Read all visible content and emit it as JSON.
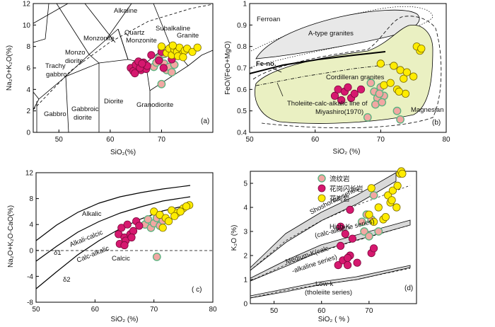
{
  "chart_data": [
    {
      "id": "a",
      "type": "scatter",
      "title": "",
      "panel_label": "(a)",
      "xlabel": "SiO₂(%)",
      "ylabel": "Na₂O+K₂O(%)",
      "xlim": [
        45,
        80
      ],
      "ylim": [
        0,
        12
      ],
      "xticks": [
        50,
        60,
        70
      ],
      "yticks": [
        0,
        2,
        4,
        6,
        8,
        10,
        12
      ],
      "field_labels": [
        "Alkaline",
        "Subalkaline",
        "Granite",
        "Quartz",
        "Monzonite",
        "Monzonite",
        "Monzo",
        "diorite",
        "Trachy",
        "gabbro",
        "Gabbro",
        "Gabbroic",
        "diorite",
        "Diorite",
        "Granodiorite"
      ],
      "series": [
        {
          "name": "流纹岩",
          "color": "#f2a7a3",
          "x": [
            68.5,
            69.0,
            69.5,
            70.5,
            71.0,
            71.5,
            72.0,
            70.0,
            72.5,
            70.5
          ],
          "y": [
            6.1,
            6.5,
            6.9,
            6.4,
            5.8,
            6.1,
            5.6,
            4.5,
            6.3,
            7.3
          ]
        },
        {
          "name": "花岗闪长岩",
          "color": "#d6186f",
          "x": [
            64.0,
            64.5,
            65.0,
            65.5,
            66.0,
            66.5,
            67.0,
            64.8,
            65.8,
            67.2,
            70.0,
            69.5,
            68.0,
            72.0,
            66.2,
            70.4
          ],
          "y": [
            6.0,
            5.7,
            6.3,
            6.6,
            5.8,
            6.5,
            5.9,
            5.5,
            6.0,
            6.2,
            7.5,
            6.7,
            7.2,
            6.8,
            6.4,
            6.0
          ]
        },
        {
          "name": "花岗岩",
          "color": "#ffec00",
          "x": [
            70.0,
            71.0,
            71.5,
            72.0,
            72.5,
            73.0,
            73.5,
            74.0,
            74.5,
            75.0,
            76.0,
            77.0,
            73.2,
            74.2,
            72.2
          ],
          "y": [
            8.0,
            7.4,
            7.8,
            7.2,
            7.7,
            7.5,
            7.9,
            7.3,
            7.6,
            7.8,
            7.5,
            7.9,
            7.1,
            7.0,
            8.1
          ]
        }
      ]
    },
    {
      "id": "b",
      "type": "scatter",
      "title": "",
      "panel_label": "(b)",
      "xlabel": "SiO₂ (%)",
      "ylabel": "FeO/(FeO+MgO)",
      "xlim": [
        50,
        80
      ],
      "ylim": [
        0.4,
        1.0
      ],
      "xticks": [
        50,
        60,
        70,
        80
      ],
      "yticks": [
        0.4,
        0.5,
        0.6,
        0.7,
        0.8,
        0.9,
        1.0
      ],
      "field_labels": [
        "Ferroan",
        "A-type granites",
        "Fe-no.",
        "Cordilleran granites",
        "Tholeiite-calc-alkalic line of",
        "Miyashiro(1970)",
        "Magnesian"
      ],
      "series": [
        {
          "name": "流纹岩",
          "color": "#f2a7a3",
          "x": [
            68.5,
            69.0,
            69.5,
            70.0,
            70.5,
            69.2,
            68.0,
            72.5,
            73.0,
            70.2,
            69.8
          ],
          "y": [
            0.63,
            0.59,
            0.56,
            0.61,
            0.57,
            0.53,
            0.47,
            0.5,
            0.46,
            0.54,
            0.58
          ]
        },
        {
          "name": "花岗闪长岩",
          "color": "#d6186f",
          "x": [
            63.0,
            63.5,
            64.0,
            64.5,
            65.0,
            65.5,
            66.0,
            67.0
          ],
          "y": [
            0.57,
            0.6,
            0.55,
            0.59,
            0.61,
            0.56,
            0.58,
            0.6
          ]
        },
        {
          "name": "花岗岩",
          "color": "#ffec00",
          "x": [
            70.0,
            72.0,
            73.0,
            73.5,
            74.0,
            75.0,
            76.0,
            72.5,
            73.8,
            75.5,
            70.5,
            72.8,
            76.2,
            71.5
          ],
          "y": [
            0.72,
            0.71,
            0.69,
            0.65,
            0.68,
            0.66,
            0.78,
            0.6,
            0.58,
            0.8,
            0.62,
            0.59,
            0.79,
            0.63
          ]
        }
      ]
    },
    {
      "id": "c",
      "type": "scatter",
      "title": "",
      "panel_label": "( c)",
      "xlabel": "SiO₂ (%)",
      "ylabel": "Na₂O+K₂O-CaO(%)",
      "xlim": [
        50,
        80
      ],
      "ylim": [
        -8,
        12
      ],
      "xticks": [
        50,
        60,
        70,
        80
      ],
      "yticks": [
        -8,
        -4,
        0,
        4,
        8,
        12
      ],
      "field_labels": [
        "Alkalic",
        "Alkali-calcic",
        "Calc-alkalic",
        "Calcic",
        "δ1",
        "δ2"
      ],
      "series": [
        {
          "name": "流纹岩",
          "color": "#f2a7a3",
          "x": [
            68.5,
            69.0,
            69.5,
            70.0,
            70.5,
            71.0,
            70.5,
            71.5
          ],
          "y": [
            4.0,
            4.8,
            3.5,
            4.2,
            5.0,
            3.8,
            -1.0,
            4.6
          ]
        },
        {
          "name": "花岗闪长岩",
          "color": "#d6186f",
          "x": [
            64.0,
            64.5,
            65.0,
            65.5,
            66.0,
            66.5,
            67.0,
            64.2,
            65.2,
            66.2,
            67.5,
            65.0
          ],
          "y": [
            2.5,
            3.5,
            2.0,
            4.0,
            2.5,
            3.0,
            4.5,
            1.0,
            1.5,
            2.0,
            3.8,
            0.8
          ]
        },
        {
          "name": "花岗岩",
          "color": "#ffec00",
          "x": [
            70.0,
            71.0,
            72.0,
            73.0,
            74.0,
            75.0,
            76.0,
            72.5,
            73.5,
            74.5,
            71.5,
            75.5
          ],
          "y": [
            6.0,
            5.5,
            5.0,
            6.2,
            5.8,
            6.5,
            7.0,
            4.5,
            5.3,
            6.0,
            3.5,
            6.8
          ]
        }
      ]
    },
    {
      "id": "d",
      "type": "scatter",
      "title": "",
      "panel_label": "(d)",
      "xlabel": "SiO₂ ( % )",
      "ylabel": "K₂O (%)",
      "xlim": [
        45,
        80
      ],
      "ylim": [
        0,
        5.5
      ],
      "xticks": [
        50,
        60,
        70
      ],
      "yticks": [
        0,
        1,
        2,
        3,
        4,
        5
      ],
      "field_labels": [
        "Shoshonite series",
        "High-K",
        "(calc-alkaline series)",
        "Medium-K(calc",
        "-alkaline series)",
        "Low-k",
        "(tholeiite series)"
      ],
      "legend": [
        {
          "label": "流纹岩",
          "color": "#f2a7a3"
        },
        {
          "label": "花岗闪长岩",
          "color": "#d6186f"
        },
        {
          "label": "花岗岩",
          "color": "#ffec00"
        }
      ],
      "series": [
        {
          "name": "流纹岩",
          "color": "#f2a7a3",
          "x": [
            68.5,
            69.0,
            70.0,
            70.5,
            71.0,
            72.0,
            69.5
          ],
          "y": [
            3.4,
            3.0,
            2.8,
            3.5,
            4.5,
            3.0,
            3.7
          ]
        },
        {
          "name": "花岗闪长岩",
          "color": "#d6186f",
          "x": [
            63.5,
            64.0,
            64.5,
            65.0,
            65.5,
            66.0,
            66.5,
            67.5,
            70.5,
            71.0,
            64.0,
            66.0,
            65.5
          ],
          "y": [
            1.6,
            2.4,
            1.8,
            2.9,
            1.6,
            2.0,
            2.7,
            1.7,
            2.1,
            2.3,
            3.2,
            3.9,
            1.9
          ]
        },
        {
          "name": "花岗岩",
          "color": "#ffec00",
          "x": [
            70.0,
            70.5,
            71.0,
            72.0,
            73.0,
            74.0,
            74.5,
            75.0,
            76.0,
            76.5,
            73.5,
            74.8,
            75.8,
            76.8,
            77.0
          ],
          "y": [
            3.7,
            4.8,
            3.4,
            4.0,
            3.5,
            4.5,
            4.2,
            4.7,
            4.9,
            5.4,
            3.6,
            4.3,
            4.0,
            5.5,
            5.4
          ]
        }
      ]
    }
  ]
}
